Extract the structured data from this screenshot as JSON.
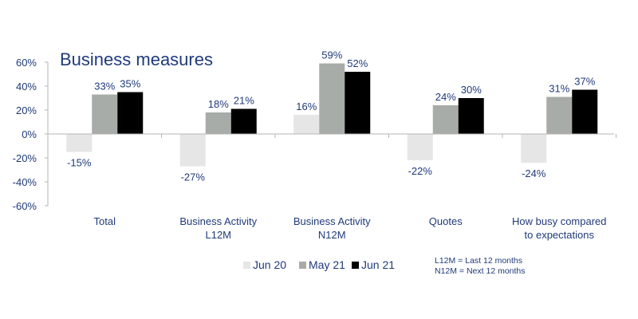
{
  "chart_data": {
    "type": "bar",
    "title": "Business measures",
    "categories": [
      [
        "Total"
      ],
      [
        "Business Activity",
        "L12M"
      ],
      [
        "Business Activity",
        "N12M"
      ],
      [
        "Quotes"
      ],
      [
        "How busy compared",
        "to expectations"
      ]
    ],
    "series": [
      {
        "name": "Jun 20",
        "color": "#e6e6e6",
        "values": [
          -15,
          -27,
          16,
          -22,
          -24
        ]
      },
      {
        "name": "May 21",
        "color": "#a8aca9",
        "values": [
          33,
          18,
          59,
          24,
          31
        ]
      },
      {
        "name": "Jun 21",
        "color": "#000000",
        "values": [
          35,
          21,
          52,
          30,
          37
        ]
      }
    ],
    "ylim": [
      -60,
      60
    ],
    "yticks": [
      -60,
      -40,
      -20,
      0,
      20,
      40,
      60
    ],
    "ytick_labels": [
      "-60%",
      "-40%",
      "-20%",
      "0%",
      "20%",
      "40%",
      "60%"
    ],
    "value_suffix": "%",
    "xlabel": "",
    "ylabel": "",
    "grid": false,
    "legend_position": "bottom"
  },
  "notes": [
    "L12M = Last 12 months",
    "N12M = Next 12 months"
  ],
  "colors": {
    "text": "#1f3a7a",
    "axis": "#b5b5b5"
  }
}
